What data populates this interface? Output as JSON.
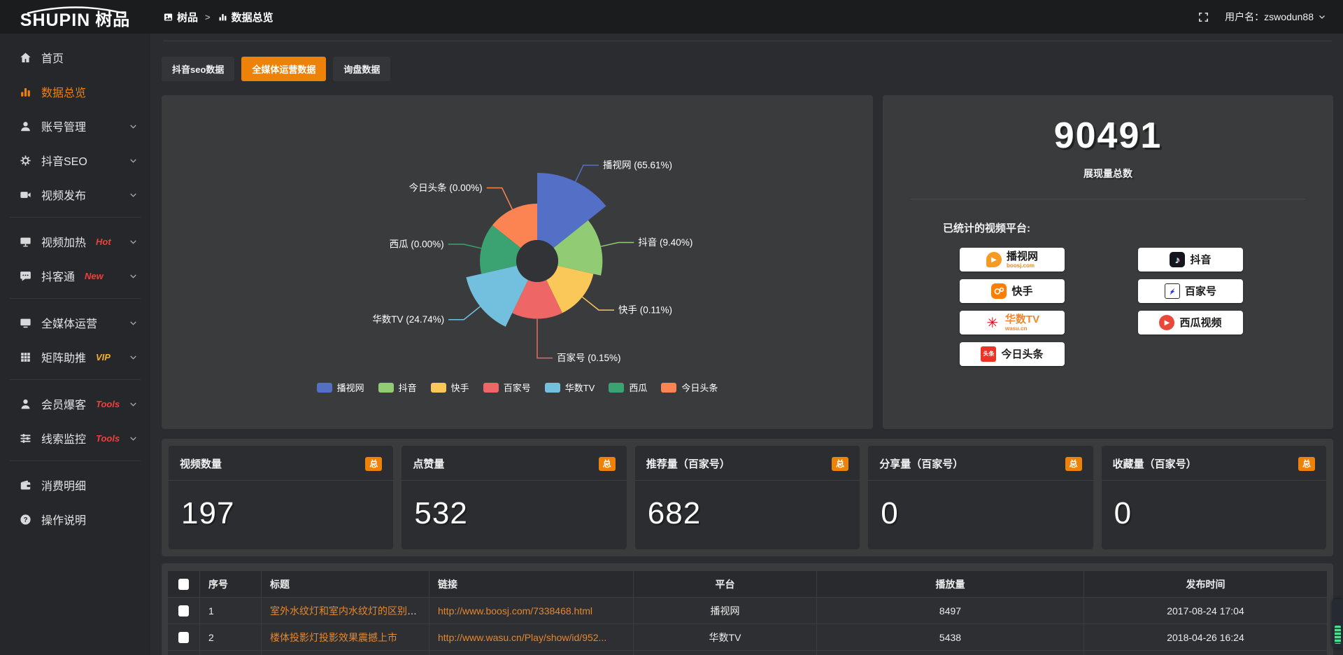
{
  "brand": {
    "logo_en": "SHUPIN",
    "logo_cn": "树品"
  },
  "header": {
    "breadcrumb": [
      {
        "label": "树品"
      },
      {
        "label": "数据总览"
      }
    ],
    "breadcrumb_separator": ">",
    "username_label": "用户名：zswodun88"
  },
  "sidebar": {
    "items": [
      {
        "label": "首页",
        "icon": "home",
        "chevron": false,
        "active": false,
        "divider_after": false
      },
      {
        "label": "数据总览",
        "icon": "bar-chart",
        "chevron": false,
        "active": true,
        "divider_after": false
      },
      {
        "label": "账号管理",
        "icon": "user",
        "chevron": true,
        "active": false,
        "divider_after": false
      },
      {
        "label": "抖音SEO",
        "icon": "gear",
        "chevron": true,
        "active": false,
        "divider_after": false
      },
      {
        "label": "视频发布",
        "icon": "video",
        "chevron": true,
        "active": false,
        "divider_after": true
      },
      {
        "label": "视频加热",
        "icon": "screen",
        "badge": "Hot",
        "badge_color": "red",
        "chevron": true,
        "active": false,
        "divider_after": false
      },
      {
        "label": "抖客通",
        "icon": "chat",
        "badge": "New",
        "badge_color": "red",
        "chevron": true,
        "active": false,
        "divider_after": true
      },
      {
        "label": "全媒体运营",
        "icon": "monitor",
        "chevron": true,
        "active": false,
        "divider_after": false
      },
      {
        "label": "矩阵助推",
        "icon": "grid",
        "badge": "VIP",
        "badge_color": "gold",
        "chevron": true,
        "active": false,
        "divider_after": true
      },
      {
        "label": "会员爆客",
        "icon": "person",
        "badge": "Tools",
        "badge_color": "red",
        "chevron": true,
        "active": false,
        "divider_after": false
      },
      {
        "label": "线索监控",
        "icon": "sliders",
        "badge": "Tools",
        "badge_color": "red",
        "chevron": true,
        "active": false,
        "divider_after": true
      },
      {
        "label": "消费明细",
        "icon": "wallet",
        "chevron": false,
        "active": false,
        "divider_after": false
      },
      {
        "label": "操作说明",
        "icon": "question",
        "chevron": false,
        "active": false,
        "divider_after": false
      }
    ]
  },
  "tabs": [
    {
      "label": "抖音seo数据",
      "active": false
    },
    {
      "label": "全媒体运营数据",
      "active": true
    },
    {
      "label": "询盘数据",
      "active": false
    }
  ],
  "chart_data": {
    "type": "pie",
    "subtype": "nightingale-rose",
    "labels": [
      "播视网",
      "抖音",
      "快手",
      "百家号",
      "华数TV",
      "西瓜",
      "今日头条"
    ],
    "values_pct": [
      65.61,
      9.4,
      0.11,
      0.15,
      24.74,
      0.0,
      0.0
    ],
    "colors": [
      "#5470c6",
      "#91cc75",
      "#fac858",
      "#ee6666",
      "#73c0de",
      "#3ba272",
      "#fc8452"
    ],
    "label_format": "name (pct%)",
    "legend_position": "bottom",
    "legend": [
      "播视网",
      "抖音",
      "快手",
      "百家号",
      "华数TV",
      "西瓜",
      "今日头条"
    ]
  },
  "summary": {
    "total": "90491",
    "total_label": "展现量总数",
    "platforms_label": "已统计的视频平台:",
    "platforms": [
      {
        "name": "播视网",
        "sub": "boosj.com",
        "key": "boosj"
      },
      {
        "name": "抖音",
        "key": "douyin"
      },
      {
        "name": "快手",
        "key": "kuaishou"
      },
      {
        "name": "百家号",
        "key": "baijiahao"
      },
      {
        "name": "华数TV",
        "sub": "wasu.cn",
        "key": "wasu"
      },
      {
        "name": "西瓜视频",
        "key": "xigua"
      },
      {
        "name": "今日头条",
        "key": "toutiao"
      }
    ]
  },
  "stat_cards": [
    {
      "label": "视频数量",
      "badge": "总",
      "value": "197"
    },
    {
      "label": "点赞量",
      "badge": "总",
      "value": "532"
    },
    {
      "label": "推荐量（百家号）",
      "badge": "总",
      "value": "682"
    },
    {
      "label": "分享量（百家号）",
      "badge": "总",
      "value": "0"
    },
    {
      "label": "收藏量（百家号）",
      "badge": "总",
      "value": "0"
    }
  ],
  "table": {
    "headers": [
      "序号",
      "标题",
      "链接",
      "平台",
      "播放量",
      "发布时间"
    ],
    "rows": [
      {
        "no": "1",
        "title": "室外水纹灯和室内水纹灯的区别和简介",
        "link": "http://www.boosj.com/7338468.html",
        "platform": "播视网",
        "plays": "8497",
        "time": "2017-08-24 17:04"
      },
      {
        "no": "2",
        "title": "楼体投影灯投影效果震撼上市",
        "link": "http://www.wasu.cn/Play/show/id/952...",
        "platform": "华数TV",
        "plays": "5438",
        "time": "2018-04-26 16:24"
      }
    ]
  }
}
